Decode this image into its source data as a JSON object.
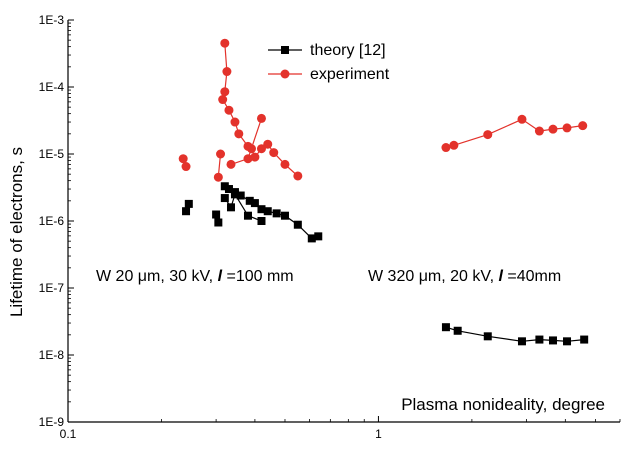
{
  "chart_data": {
    "type": "scatter",
    "xscale": "log",
    "yscale": "log",
    "xlim": [
      0.1,
      6
    ],
    "ylim": [
      1e-09,
      0.001
    ],
    "x_ticks": [
      0.1,
      1
    ],
    "x_tick_labels": [
      "0.1",
      "1"
    ],
    "y_ticks": [
      1e-09,
      1e-08,
      1e-07,
      1e-06,
      1e-05,
      0.0001,
      0.001
    ],
    "y_tick_labels": [
      "1E-9",
      "1E-8",
      "1E-7",
      "1E-6",
      "1E-5",
      "1E-4",
      "1E-3"
    ],
    "xlabel": "Plasma nonideality, degree",
    "ylabel": "Lifetime of electrons, s",
    "legend_position": "top-center",
    "series": [
      {
        "name": "theory [12]",
        "marker": "square",
        "color": "#000000",
        "segments": [
          {
            "x": [
              0.24,
              0.245
            ],
            "y": [
              1.4e-06,
              1.8e-06
            ]
          },
          {
            "x": [
              0.3,
              0.305
            ],
            "y": [
              1.25e-06,
              9.5e-07
            ]
          },
          {
            "x": [
              0.32,
              0.33,
              0.345,
              0.36,
              0.385,
              0.4,
              0.42,
              0.44,
              0.47,
              0.5,
              0.55,
              0.61,
              0.64
            ],
            "y": [
              3.3e-06,
              3e-06,
              2.7e-06,
              2.4e-06,
              2e-06,
              1.85e-06,
              1.5e-06,
              1.4e-06,
              1.3e-06,
              1.2e-06,
              8.8e-07,
              5.5e-07,
              5.9e-07
            ]
          },
          {
            "x": [
              0.32,
              0.335,
              0.345,
              0.38,
              0.42
            ],
            "y": [
              2.2e-06,
              1.6e-06,
              2.5e-06,
              1.2e-06,
              1e-06
            ]
          },
          {
            "x": [
              1.65,
              1.8,
              2.25,
              2.9,
              3.3,
              3.65,
              4.05,
              4.6
            ],
            "y": [
              2.6e-08,
              2.3e-08,
              1.9e-08,
              1.6e-08,
              1.7e-08,
              1.65e-08,
              1.6e-08,
              1.7e-08
            ]
          }
        ]
      },
      {
        "name": "experiment",
        "marker": "circle",
        "color": "#e3322b",
        "segments": [
          {
            "x": [
              0.235,
              0.24
            ],
            "y": [
              8.5e-06,
              6.5e-06
            ]
          },
          {
            "x": [
              0.31,
              0.305
            ],
            "y": [
              1e-05,
              4.5e-06
            ]
          },
          {
            "x": [
              0.32,
              0.325,
              0.32,
              0.315,
              0.33,
              0.345,
              0.355,
              0.38,
              0.39,
              0.4,
              0.42,
              0.44,
              0.46,
              0.5,
              0.55
            ],
            "y": [
              0.00045,
              0.00017,
              8.5e-05,
              6.5e-05,
              4.5e-05,
              3e-05,
              2e-05,
              1.3e-05,
              1.2e-05,
              9e-06,
              1.2e-05,
              1.4e-05,
              1.05e-05,
              7e-06,
              4.7e-06
            ]
          },
          {
            "x": [
              0.335,
              0.38,
              0.42
            ],
            "y": [
              7e-06,
              8.5e-06,
              3.4e-05
            ]
          },
          {
            "x": [
              1.65,
              1.75,
              2.25,
              2.9,
              3.3,
              3.65,
              4.05,
              4.55
            ],
            "y": [
              1.25e-05,
              1.35e-05,
              1.95e-05,
              3.3e-05,
              2.2e-05,
              2.35e-05,
              2.45e-05,
              2.65e-05
            ]
          }
        ]
      }
    ],
    "annotations": [
      {
        "parts": [
          "W 20 ",
          "μ",
          "m,  30 kV,  ",
          "l",
          " =100 mm"
        ]
      },
      {
        "parts": [
          "W  320 ",
          "μ",
          "m,  20 kV,  ",
          "l",
          " =40",
          "mm"
        ]
      }
    ]
  }
}
